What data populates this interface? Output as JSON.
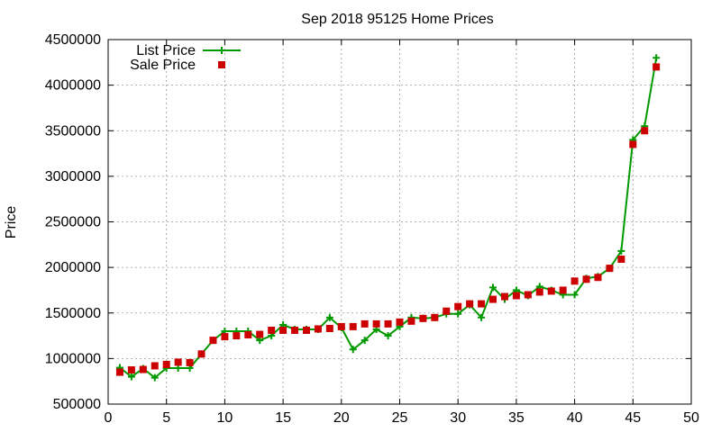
{
  "chart_data": {
    "type": "line",
    "title": "Sep 2018 95125 Home Prices",
    "xlabel": "",
    "ylabel": "Price",
    "xlim": [
      0,
      50
    ],
    "ylim": [
      500000,
      4500000
    ],
    "xticks": [
      0,
      5,
      10,
      15,
      20,
      25,
      30,
      35,
      40,
      45,
      50
    ],
    "yticks": [
      500000,
      1000000,
      1500000,
      2000000,
      2500000,
      3000000,
      3500000,
      4000000,
      4500000
    ],
    "grid": true,
    "legend_position": "top-left",
    "series": [
      {
        "name": "List Price",
        "style": "line-with-plus-markers",
        "color": "#009900",
        "points": [
          [
            1,
            900000
          ],
          [
            2,
            800000
          ],
          [
            3,
            890000
          ],
          [
            4,
            790000
          ],
          [
            5,
            895000
          ],
          [
            6,
            895000
          ],
          [
            7,
            895000
          ],
          [
            8,
            1050000
          ],
          [
            9,
            1200000
          ],
          [
            10,
            1300000
          ],
          [
            11,
            1300000
          ],
          [
            12,
            1300000
          ],
          [
            13,
            1200000
          ],
          [
            14,
            1250000
          ],
          [
            15,
            1370000
          ],
          [
            16,
            1320000
          ],
          [
            17,
            1320000
          ],
          [
            18,
            1320000
          ],
          [
            19,
            1450000
          ],
          [
            20,
            1340000
          ],
          [
            21,
            1100000
          ],
          [
            22,
            1200000
          ],
          [
            23,
            1320000
          ],
          [
            24,
            1250000
          ],
          [
            25,
            1350000
          ],
          [
            26,
            1450000
          ],
          [
            27,
            1440000
          ],
          [
            28,
            1450000
          ],
          [
            29,
            1490000
          ],
          [
            30,
            1490000
          ],
          [
            31,
            1590000
          ],
          [
            32,
            1450000
          ],
          [
            33,
            1780000
          ],
          [
            34,
            1650000
          ],
          [
            35,
            1750000
          ],
          [
            36,
            1690000
          ],
          [
            37,
            1790000
          ],
          [
            38,
            1750000
          ],
          [
            39,
            1700000
          ],
          [
            40,
            1700000
          ],
          [
            41,
            1880000
          ],
          [
            42,
            1900000
          ],
          [
            43,
            1990000
          ],
          [
            44,
            2180000
          ],
          [
            45,
            3400000
          ],
          [
            46,
            3550000
          ],
          [
            47,
            4300000
          ]
        ]
      },
      {
        "name": "Sale Price",
        "style": "square-markers",
        "color": "#cc0000",
        "points": [
          [
            1,
            850000
          ],
          [
            2,
            875000
          ],
          [
            3,
            880000
          ],
          [
            4,
            920000
          ],
          [
            5,
            935000
          ],
          [
            6,
            960000
          ],
          [
            7,
            955000
          ],
          [
            8,
            1050000
          ],
          [
            9,
            1200000
          ],
          [
            10,
            1240000
          ],
          [
            11,
            1250000
          ],
          [
            12,
            1260000
          ],
          [
            13,
            1265000
          ],
          [
            14,
            1310000
          ],
          [
            15,
            1310000
          ],
          [
            16,
            1310000
          ],
          [
            17,
            1310000
          ],
          [
            18,
            1325000
          ],
          [
            19,
            1330000
          ],
          [
            20,
            1350000
          ],
          [
            21,
            1350000
          ],
          [
            22,
            1380000
          ],
          [
            23,
            1380000
          ],
          [
            24,
            1380000
          ],
          [
            25,
            1400000
          ],
          [
            26,
            1410000
          ],
          [
            27,
            1440000
          ],
          [
            28,
            1450000
          ],
          [
            29,
            1520000
          ],
          [
            30,
            1570000
          ],
          [
            31,
            1600000
          ],
          [
            32,
            1600000
          ],
          [
            33,
            1650000
          ],
          [
            34,
            1680000
          ],
          [
            35,
            1690000
          ],
          [
            36,
            1700000
          ],
          [
            37,
            1730000
          ],
          [
            38,
            1740000
          ],
          [
            39,
            1750000
          ],
          [
            40,
            1850000
          ],
          [
            41,
            1870000
          ],
          [
            42,
            1890000
          ],
          [
            43,
            1990000
          ],
          [
            44,
            2090000
          ],
          [
            45,
            3350000
          ],
          [
            46,
            3500000
          ],
          [
            47,
            4200000
          ]
        ]
      }
    ]
  }
}
